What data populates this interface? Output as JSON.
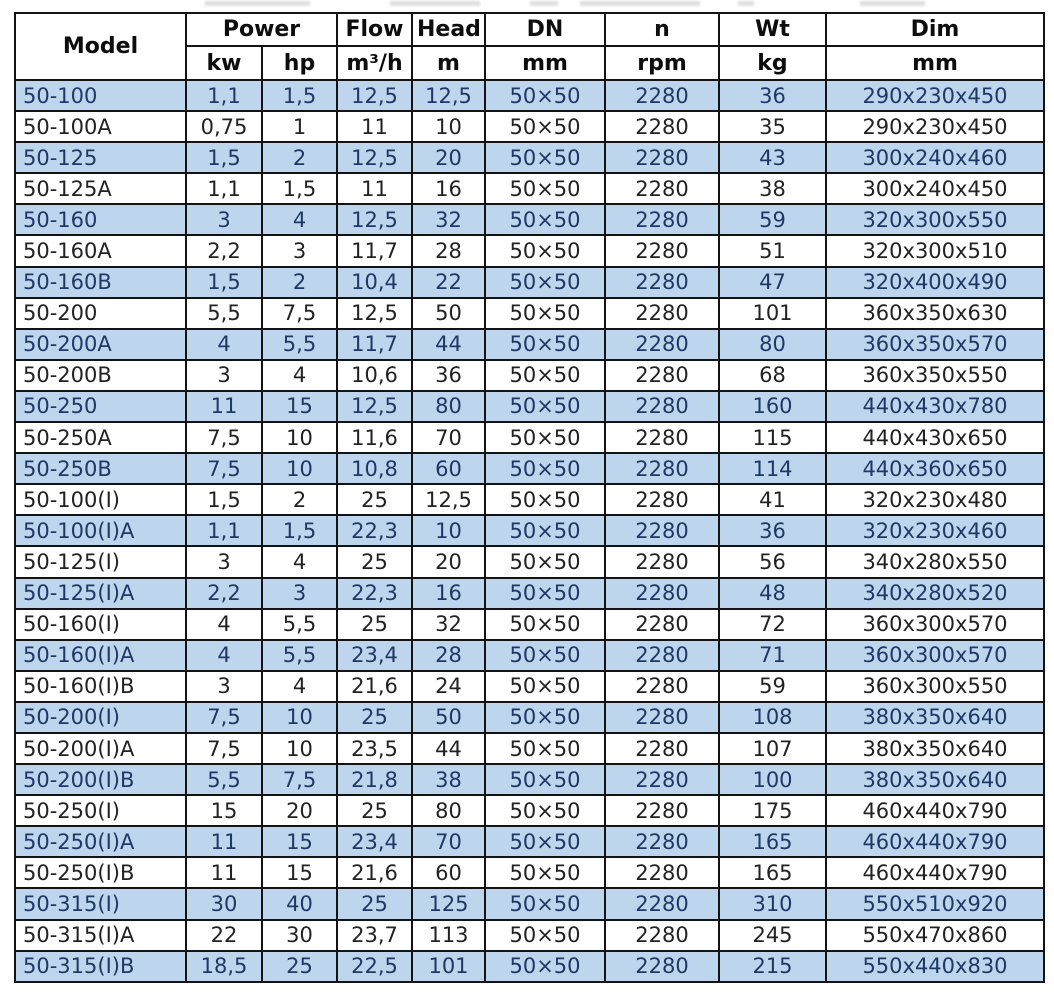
{
  "colors": {
    "row_highlight_bg": "#bdd6ee",
    "row_highlight_text": "#1f3864",
    "row_plain_text": "#222222",
    "border": "#131313",
    "header_text": "#0d0d0d"
  },
  "table": {
    "header": {
      "model": "Model",
      "power": "Power",
      "kw": "kw",
      "hp": "hp",
      "flow": "Flow",
      "flow_unit": "m³/h",
      "head": "Head",
      "head_unit": "m",
      "dn": "DN",
      "dn_unit": "mm",
      "n": "n",
      "n_unit": "rpm",
      "wt": "Wt",
      "wt_unit": "kg",
      "dim": "Dim",
      "dim_unit": "mm"
    },
    "rows": [
      [
        "50-100",
        "1,1",
        "1,5",
        "12,5",
        "12,5",
        "50×50",
        "2280",
        "36",
        "290x230x450"
      ],
      [
        "50-100A",
        "0,75",
        "1",
        "11",
        "10",
        "50×50",
        "2280",
        "35",
        "290x230x450"
      ],
      [
        "50-125",
        "1,5",
        "2",
        "12,5",
        "20",
        "50×50",
        "2280",
        "43",
        "300x240x460"
      ],
      [
        "50-125A",
        "1,1",
        "1,5",
        "11",
        "16",
        "50×50",
        "2280",
        "38",
        "300x240x450"
      ],
      [
        "50-160",
        "3",
        "4",
        "12,5",
        "32",
        "50×50",
        "2280",
        "59",
        "320x300x550"
      ],
      [
        "50-160A",
        "2,2",
        "3",
        "11,7",
        "28",
        "50×50",
        "2280",
        "51",
        "320x300x510"
      ],
      [
        "50-160B",
        "1,5",
        "2",
        "10,4",
        "22",
        "50×50",
        "2280",
        "47",
        "320x400x490"
      ],
      [
        "50-200",
        "5,5",
        "7,5",
        "12,5",
        "50",
        "50×50",
        "2280",
        "101",
        "360x350x630"
      ],
      [
        "50-200A",
        "4",
        "5,5",
        "11,7",
        "44",
        "50×50",
        "2280",
        "80",
        "360x350x570"
      ],
      [
        "50-200B",
        "3",
        "4",
        "10,6",
        "36",
        "50×50",
        "2280",
        "68",
        "360x350x550"
      ],
      [
        "50-250",
        "11",
        "15",
        "12,5",
        "80",
        "50×50",
        "2280",
        "160",
        "440x430x780"
      ],
      [
        "50-250A",
        "7,5",
        "10",
        "11,6",
        "70",
        "50×50",
        "2280",
        "115",
        "440x430x650"
      ],
      [
        "50-250B",
        "7,5",
        "10",
        "10,8",
        "60",
        "50×50",
        "2280",
        "114",
        "440x360x650"
      ],
      [
        "50-100(I)",
        "1,5",
        "2",
        "25",
        "12,5",
        "50×50",
        "2280",
        "41",
        "320x230x480"
      ],
      [
        "50-100(I)A",
        "1,1",
        "1,5",
        "22,3",
        "10",
        "50×50",
        "2280",
        "36",
        "320x230x460"
      ],
      [
        "50-125(I)",
        "3",
        "4",
        "25",
        "20",
        "50×50",
        "2280",
        "56",
        "340x280x550"
      ],
      [
        "50-125(I)A",
        "2,2",
        "3",
        "22,3",
        "16",
        "50×50",
        "2280",
        "48",
        "340x280x520"
      ],
      [
        "50-160(I)",
        "4",
        "5,5",
        "25",
        "32",
        "50×50",
        "2280",
        "72",
        "360x300x570"
      ],
      [
        "50-160(I)A",
        "4",
        "5,5",
        "23,4",
        "28",
        "50×50",
        "2280",
        "71",
        "360x300x570"
      ],
      [
        "50-160(I)B",
        "3",
        "4",
        "21,6",
        "24",
        "50×50",
        "2280",
        "59",
        "360x300x550"
      ],
      [
        "50-200(I)",
        "7,5",
        "10",
        "25",
        "50",
        "50×50",
        "2280",
        "108",
        "380x350x640"
      ],
      [
        "50-200(I)A",
        "7,5",
        "10",
        "23,5",
        "44",
        "50×50",
        "2280",
        "107",
        "380x350x640"
      ],
      [
        "50-200(I)B",
        "5,5",
        "7,5",
        "21,8",
        "38",
        "50×50",
        "2280",
        "100",
        "380x350x640"
      ],
      [
        "50-250(I)",
        "15",
        "20",
        "25",
        "80",
        "50×50",
        "2280",
        "175",
        "460x440x790"
      ],
      [
        "50-250(I)A",
        "11",
        "15",
        "23,4",
        "70",
        "50×50",
        "2280",
        "165",
        "460x440x790"
      ],
      [
        "50-250(I)B",
        "11",
        "15",
        "21,6",
        "60",
        "50×50",
        "2280",
        "165",
        "460x440x790"
      ],
      [
        "50-315(I)",
        "30",
        "40",
        "25",
        "125",
        "50×50",
        "2280",
        "310",
        "550x510x920"
      ],
      [
        "50-315(I)A",
        "22",
        "30",
        "23,7",
        "113",
        "50×50",
        "2280",
        "245",
        "550x470x860"
      ],
      [
        "50-315(I)B",
        "18,5",
        "25",
        "22,5",
        "101",
        "50×50",
        "2280",
        "215",
        "550x440x830"
      ]
    ]
  }
}
